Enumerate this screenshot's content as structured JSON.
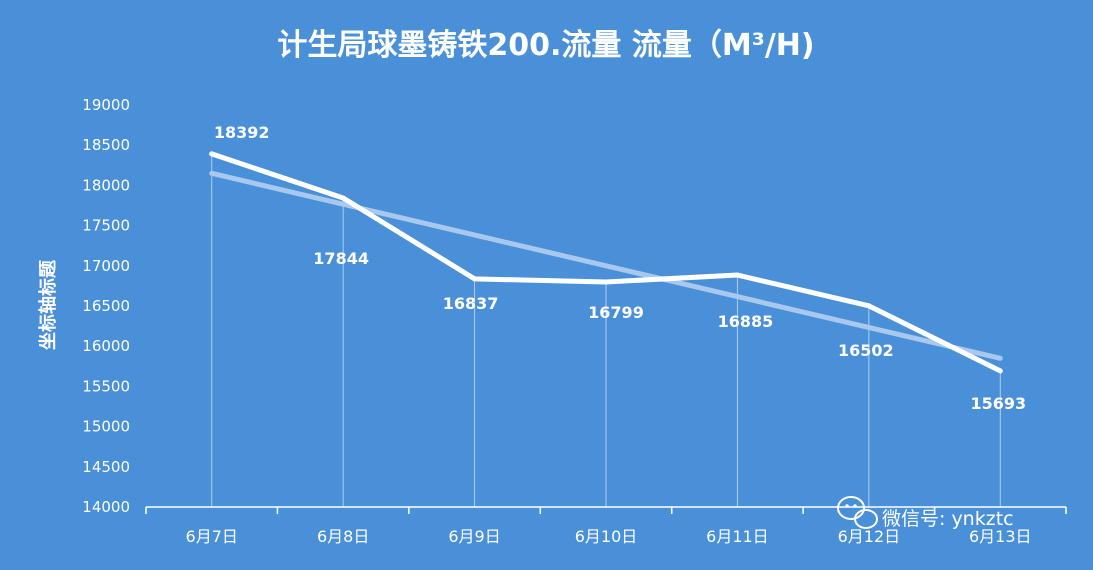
{
  "chart_data": {
    "type": "line",
    "title": "计生局球墨铸铁200.流量 流量（M³/H)",
    "ylabel": "坐标轴标题",
    "categories": [
      "6月7日",
      "6月8日",
      "6月9日",
      "6月10日",
      "6月11日",
      "6月12日",
      "6月13日"
    ],
    "series": [
      {
        "values": [
          18392,
          17844,
          16837,
          16799,
          16885,
          16502,
          15693
        ]
      }
    ],
    "trendline": {
      "type": "linear",
      "start": 18150,
      "end": 15850
    },
    "ylim": [
      14000,
      19000
    ],
    "yticks": [
      14000,
      14500,
      15000,
      15500,
      16000,
      16500,
      17000,
      17500,
      18000,
      18500,
      19000
    ],
    "data_labels": true,
    "grid": false,
    "colors": {
      "background": "#4a90d9",
      "line": "#ffffff",
      "trendline": "#a9c8ee"
    }
  },
  "watermark": {
    "text": "微信号: ynkztc",
    "icon": "wechat-icon"
  }
}
